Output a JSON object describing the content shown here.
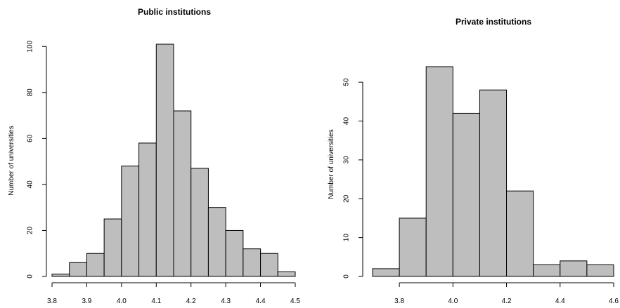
{
  "chart_data": [
    {
      "type": "bar",
      "title": "Public institutions",
      "xlabel": "",
      "ylabel": "Number of universities",
      "bin_edges": [
        3.8,
        3.85,
        3.9,
        3.95,
        4.0,
        4.05,
        4.1,
        4.15,
        4.2,
        4.25,
        4.3,
        4.35,
        4.4,
        4.45,
        4.5
      ],
      "values": [
        1,
        6,
        10,
        25,
        48,
        58,
        101,
        72,
        47,
        30,
        20,
        12,
        10,
        2
      ],
      "xticks": [
        "3.8",
        "3.9",
        "4.0",
        "4.1",
        "4.2",
        "4.3",
        "4.4",
        "4.5"
      ],
      "xtick_values": [
        3.8,
        3.9,
        4.0,
        4.1,
        4.2,
        4.3,
        4.4,
        4.5
      ],
      "yticks": [
        "0",
        "20",
        "40",
        "60",
        "80",
        "100"
      ],
      "ytick_values": [
        0,
        20,
        40,
        60,
        80,
        100
      ],
      "xlim": [
        3.8,
        4.5
      ],
      "ylim": [
        0,
        101
      ],
      "grid": false,
      "bar_color": "#bebebe"
    },
    {
      "type": "bar",
      "title": "Private institutions",
      "xlabel": "",
      "ylabel": "Number of universities",
      "bin_edges": [
        3.7,
        3.8,
        3.9,
        4.0,
        4.1,
        4.2,
        4.3,
        4.4,
        4.5,
        4.6
      ],
      "values": [
        2,
        15,
        54,
        42,
        48,
        22,
        3,
        4,
        3
      ],
      "xticks": [
        "3.8",
        "4.0",
        "4.2",
        "4.4",
        "4.6"
      ],
      "xtick_values": [
        3.8,
        4.0,
        4.2,
        4.4,
        4.6
      ],
      "yticks": [
        "0",
        "10",
        "20",
        "30",
        "40",
        "50"
      ],
      "ytick_values": [
        0,
        10,
        20,
        30,
        40,
        50
      ],
      "xlim": [
        3.7,
        4.6
      ],
      "ylim": [
        0,
        54
      ],
      "grid": false,
      "bar_color": "#bebebe"
    }
  ]
}
